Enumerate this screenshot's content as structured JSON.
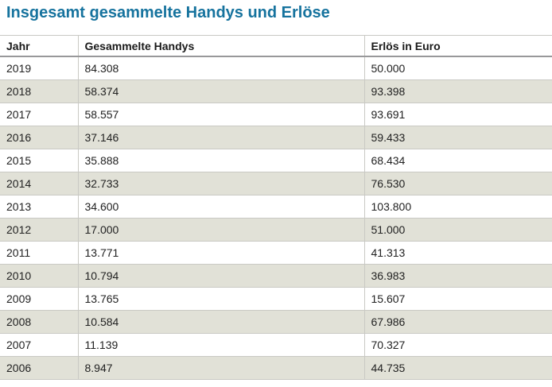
{
  "title": "Insgesamt gesammelte Handys und Erlöse",
  "colors": {
    "title": "#16739e",
    "row_shade": "#e1e1d7",
    "header_border": "#98989a",
    "grid_line": "#c9c9c4",
    "text": "#222222"
  },
  "chart_data": {
    "type": "table",
    "title": "Insgesamt gesammelte Handys und Erlöse",
    "columns": [
      "Jahr",
      "Gesammelte Handys",
      "Erlös in Euro"
    ],
    "rows": [
      [
        "2019",
        "84.308",
        "50.000"
      ],
      [
        "2018",
        "58.374",
        "93.398"
      ],
      [
        "2017",
        "58.557",
        "93.691"
      ],
      [
        "2016",
        "37.146",
        "59.433"
      ],
      [
        "2015",
        "35.888",
        "68.434"
      ],
      [
        "2014",
        "32.733",
        "76.530"
      ],
      [
        "2013",
        "34.600",
        "103.800"
      ],
      [
        "2012",
        "17.000",
        "51.000"
      ],
      [
        "2011",
        "13.771",
        "41.313"
      ],
      [
        "2010",
        "10.794",
        "36.983"
      ],
      [
        "2009",
        "13.765",
        "15.607"
      ],
      [
        "2008",
        "10.584",
        "67.986"
      ],
      [
        "2007",
        "11.139",
        "70.327"
      ],
      [
        "2006",
        "8.947",
        "44.735"
      ]
    ],
    "layout": {
      "striped": true,
      "stripe_pattern": "every second row shaded starting with row 2",
      "grid": "horizontal and vertical light lines, dark rule under header"
    }
  }
}
